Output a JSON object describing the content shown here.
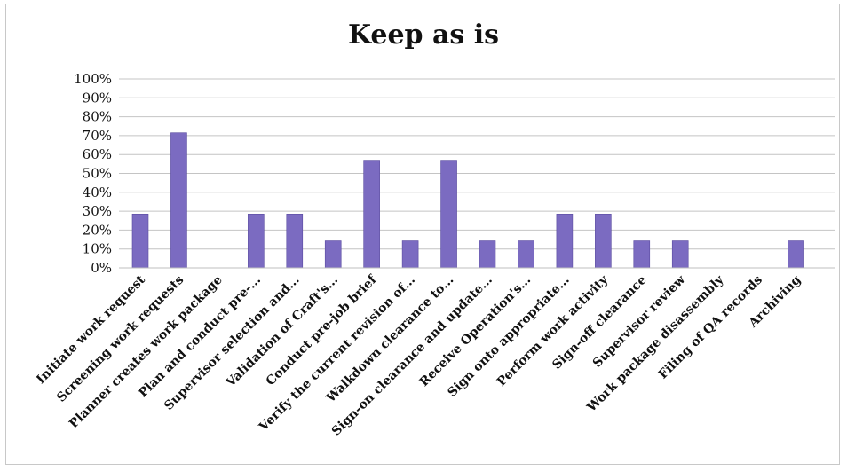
{
  "chart_data": {
    "type": "bar",
    "title": "Keep as is",
    "xlabel": "",
    "ylabel": "",
    "ylim": [
      0,
      100
    ],
    "yticks": [
      "0%",
      "10%",
      "20%",
      "30%",
      "40%",
      "50%",
      "60%",
      "70%",
      "80%",
      "90%",
      "100%"
    ],
    "grid": true,
    "legend": "none",
    "bar_color": "#7b6bc1",
    "categories": [
      "Initiate work request",
      "Screening work requests",
      "Planner creates work package",
      "Plan and conduct pre-…",
      "Supervisor selection and…",
      "Validation of Craft's…",
      "Conduct pre-job brief",
      "Verify the current revision of…",
      "Walkdown clearance to…",
      "Sign-on clearance and update…",
      "Receive Operation's…",
      "Sign onto appropriate…",
      "Perform work activity",
      "Sign-off clearance",
      "Supervisor review",
      "Work package disassembly",
      "Filing of QA records",
      "Archiving"
    ],
    "values": [
      28.5,
      71.5,
      0,
      28.5,
      28.5,
      14.3,
      57,
      14.3,
      57,
      14.3,
      14.3,
      28.5,
      28.5,
      14.3,
      14.3,
      0,
      0,
      14.3
    ]
  }
}
